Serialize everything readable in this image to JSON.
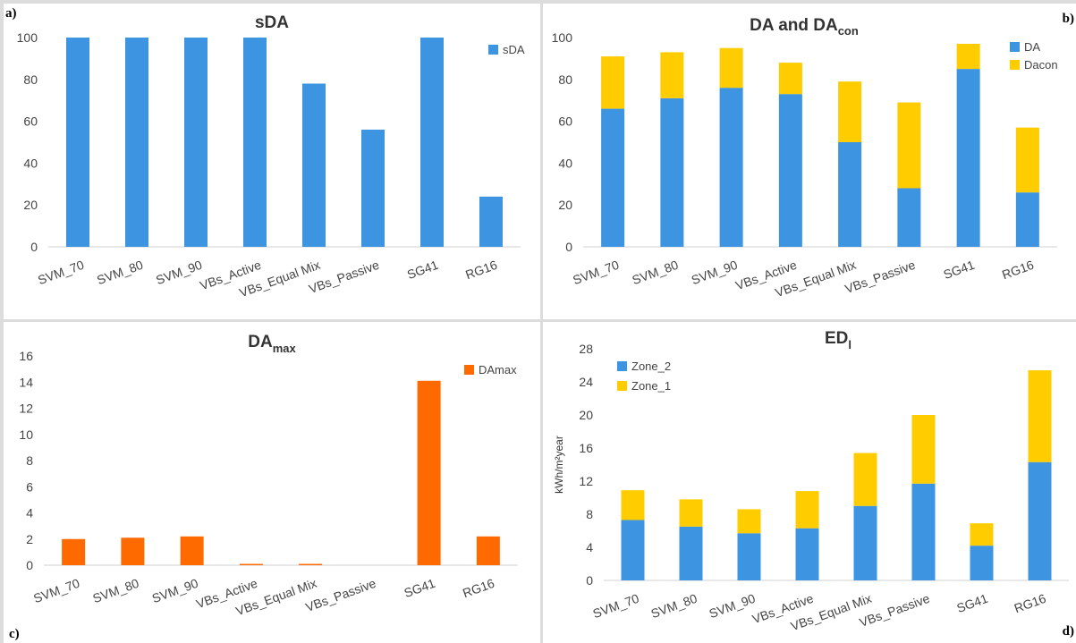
{
  "panels": {
    "a": {
      "letter": "a)"
    },
    "b": {
      "letter": "b)"
    },
    "c": {
      "letter": "c)"
    },
    "d": {
      "letter": "d)"
    }
  },
  "colors": {
    "blue": "#3d94e0",
    "yellow": "#ffcc00",
    "orange": "#ff6a00",
    "grid": "#d9d9d9",
    "axis_text": "#595959"
  },
  "chart_data": [
    {
      "id": "sda",
      "type": "bar",
      "title": "sDA",
      "title_sub": "",
      "categories": [
        "SVM_70",
        "SVM_80",
        "SVM_90",
        "VBs_Active",
        "VBs_Equal Mix",
        "VBs_Passive",
        "SG41",
        "RG16"
      ],
      "series": [
        {
          "name": "sDA",
          "values": [
            100,
            100,
            100,
            100,
            78,
            56,
            100,
            24
          ],
          "color": "#3d94e0"
        }
      ],
      "ylim": [
        0,
        100
      ],
      "yticks": [
        0,
        20,
        40,
        60,
        80,
        100
      ],
      "ylabel": "",
      "grid": false,
      "legend": "top-right"
    },
    {
      "id": "da",
      "type": "bar",
      "stacked": true,
      "title": "DA and DA",
      "title_sub": "con",
      "categories": [
        "SVM_70",
        "SVM_80",
        "SVM_90",
        "VBs_Active",
        "VBs_Equal Mix",
        "VBs_Passive",
        "SG41",
        "RG16"
      ],
      "series": [
        {
          "name": "DA",
          "values": [
            66,
            71,
            76,
            73,
            50,
            28,
            85,
            26
          ],
          "color": "#3d94e0"
        },
        {
          "name": "Dacon",
          "values": [
            25,
            22,
            19,
            15,
            29,
            41,
            12,
            31
          ],
          "color": "#ffcc00"
        }
      ],
      "ylim": [
        0,
        100
      ],
      "yticks": [
        0,
        20,
        40,
        60,
        80,
        100
      ],
      "ylabel": "",
      "grid": false,
      "legend": "top-right"
    },
    {
      "id": "damax",
      "type": "bar",
      "title": "DA",
      "title_sub": "max",
      "categories": [
        "SVM_70",
        "SVM_80",
        "SVM_90",
        "VBs_Active",
        "VBs_Equal Mix",
        "VBs_Passive",
        "SG41",
        "RG16"
      ],
      "series": [
        {
          "name": "DAmax",
          "values": [
            2.0,
            2.1,
            2.2,
            0.1,
            0.1,
            0.0,
            14.1,
            2.2
          ],
          "color": "#ff6a00"
        }
      ],
      "ylim": [
        0,
        16
      ],
      "yticks": [
        0,
        2,
        4,
        6,
        8,
        10,
        12,
        14,
        16
      ],
      "ylabel": "",
      "grid": false,
      "legend": "top-right"
    },
    {
      "id": "edl",
      "type": "bar",
      "stacked": true,
      "title": "ED",
      "title_sub": "l",
      "categories": [
        "SVM_70",
        "SVM_80",
        "SVM_90",
        "VBs_Active",
        "VBs_Equal Mix",
        "VBs_Passive",
        "SG41",
        "RG16"
      ],
      "series": [
        {
          "name": "Zone_2",
          "values": [
            7.3,
            6.5,
            5.7,
            6.3,
            9.0,
            11.7,
            4.2,
            14.3
          ],
          "color": "#3d94e0"
        },
        {
          "name": "Zone_1",
          "values": [
            3.6,
            3.3,
            2.9,
            4.5,
            6.4,
            8.3,
            2.7,
            11.1
          ],
          "color": "#ffcc00"
        }
      ],
      "ylim": [
        0,
        28
      ],
      "yticks": [
        0,
        4,
        8,
        12,
        16,
        20,
        24,
        28
      ],
      "ylabel": "kWh/m²year",
      "grid": false,
      "legend": "top-left"
    }
  ]
}
